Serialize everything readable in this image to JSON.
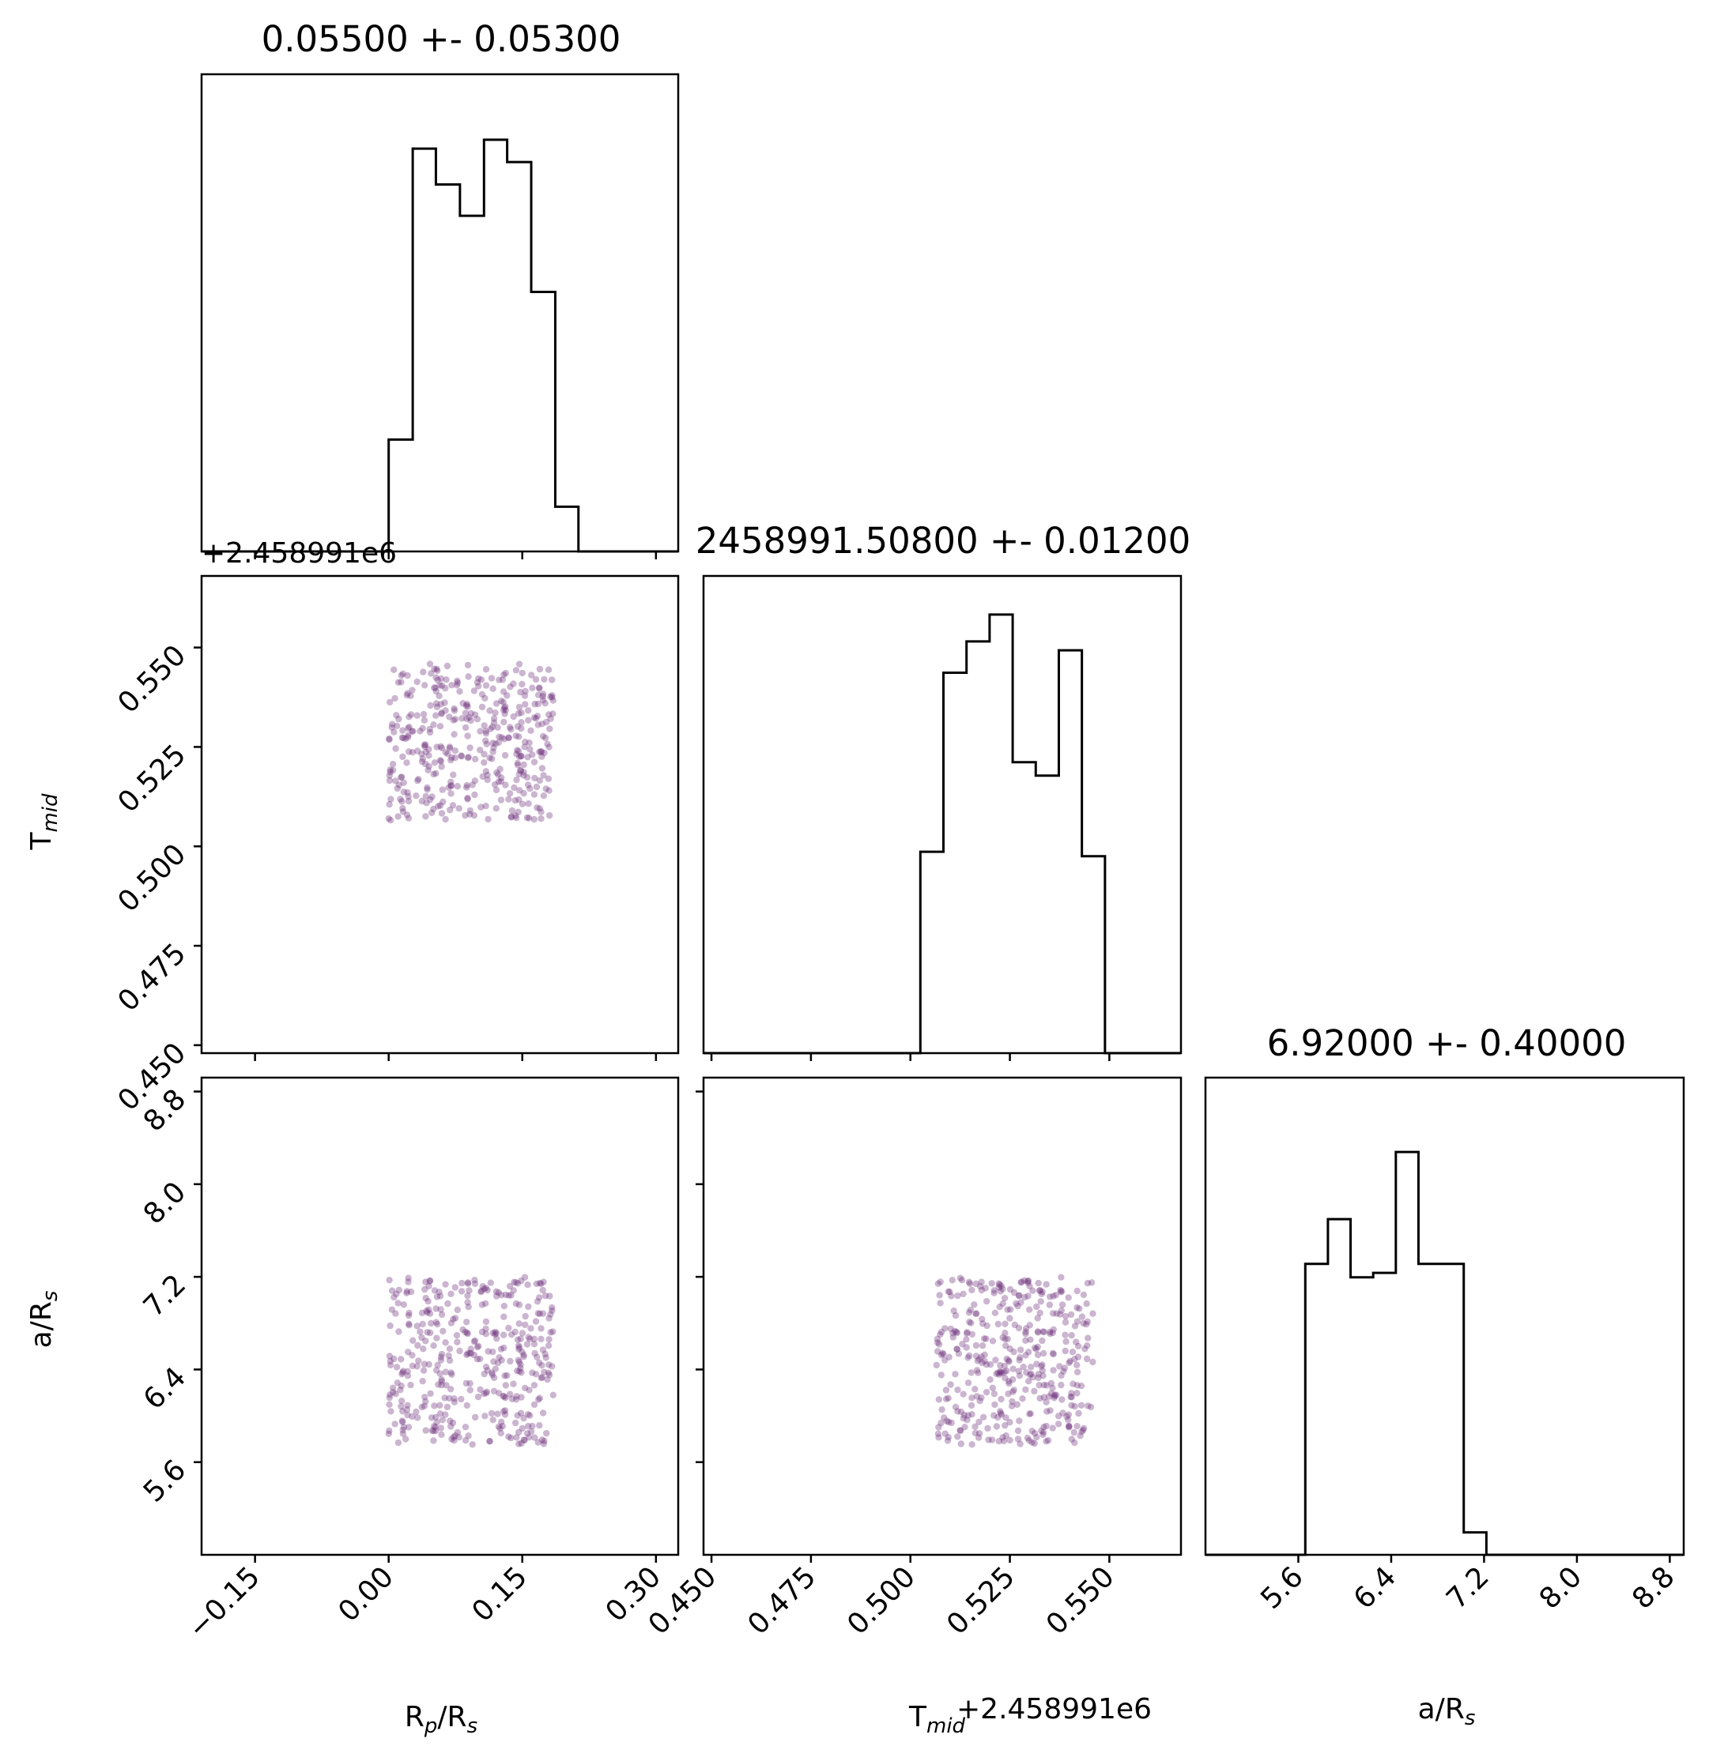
{
  "chart_data": {
    "type": "scatter",
    "figure": "corner",
    "parameters": [
      {
        "key": "rp",
        "label_main": "R",
        "label_sub": "p",
        "label_mid": "/R",
        "label_sub2": "s",
        "title": "0.05500 +- 0.05300",
        "ticks": [
          "−0.15",
          "0.00",
          "0.15",
          "0.30"
        ],
        "tick_values": [
          -0.15,
          0.0,
          0.15,
          0.3
        ],
        "range": [
          -0.21,
          0.325
        ],
        "offset_text": ""
      },
      {
        "key": "tmid",
        "label_main": "T",
        "label_sub": "mid",
        "label_mid": "",
        "label_sub2": "",
        "title": "2458991.50800 +- 0.01200",
        "ticks": [
          "0.450",
          "0.475",
          "0.500",
          "0.525",
          "0.550"
        ],
        "tick_values": [
          0.45,
          0.475,
          0.5,
          0.525,
          0.55
        ],
        "range": [
          0.448,
          0.568
        ],
        "offset_text": "+2.458991e6"
      },
      {
        "key": "ars",
        "label_main": "a/R",
        "label_sub": "s",
        "label_mid": "",
        "label_sub2": "",
        "title": "6.92000 +- 0.40000",
        "ticks": [
          "5.6",
          "6.4",
          "7.2",
          "8.0",
          "8.8"
        ],
        "tick_values": [
          5.6,
          6.4,
          7.2,
          8.0,
          8.8
        ],
        "range": [
          4.8,
          8.92
        ],
        "offset_text": ""
      }
    ],
    "histograms": [
      {
        "param": "rp",
        "edges": [
          -0.21,
          -0.189,
          -0.168,
          -0.147,
          -0.126,
          -0.105,
          -0.084,
          -0.063,
          -0.042,
          -0.021,
          0.0,
          0.027,
          0.053,
          0.08,
          0.107,
          0.133,
          0.16,
          0.187,
          0.213,
          0.24,
          0.267,
          0.293,
          0.325
        ],
        "counts": [
          0,
          0,
          0,
          0,
          0,
          0,
          0,
          0,
          0,
          0,
          0.25,
          0.9,
          0.82,
          0.75,
          0.92,
          0.87,
          0.58,
          0.1,
          0,
          0,
          0,
          0
        ]
      },
      {
        "param": "tmid",
        "edges": [
          0.448,
          0.5025,
          0.5083,
          0.5141,
          0.5199,
          0.5257,
          0.5315,
          0.5373,
          0.5431,
          0.5489,
          0.568
        ],
        "counts": [
          0,
          0.45,
          0.85,
          0.92,
          0.98,
          0.65,
          0.62,
          0.9,
          0.44,
          0
        ]
      },
      {
        "param": "ars",
        "edges": [
          4.8,
          5.66,
          5.855,
          6.05,
          6.245,
          6.44,
          6.635,
          6.83,
          7.025,
          7.22,
          8.92
        ],
        "counts": [
          0,
          0.65,
          0.75,
          0.62,
          0.63,
          0.9,
          0.65,
          0.65,
          0.05,
          0
        ]
      }
    ],
    "scatter": {
      "n_samples": 400,
      "rp_range": [
        0.0,
        0.185
      ],
      "tmid_range": [
        0.5065,
        0.546
      ],
      "ars_range": [
        5.75,
        7.2
      ],
      "color": "#6b2c79"
    },
    "grid": false,
    "legend": "none"
  }
}
